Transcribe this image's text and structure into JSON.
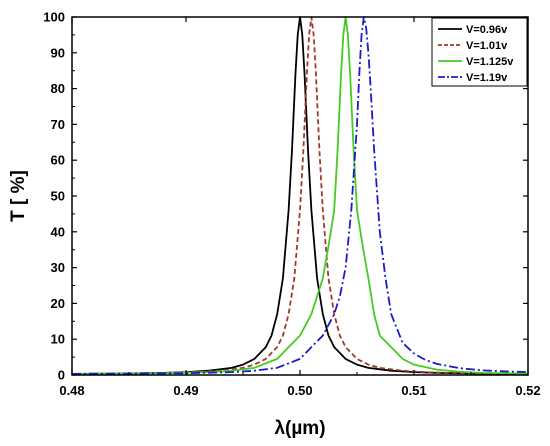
{
  "chart_data": {
    "type": "line",
    "xlabel": "λ(µm)",
    "ylabel": "T [ %]",
    "xlim": [
      0.48,
      0.52
    ],
    "ylim": [
      0,
      100
    ],
    "xticks": [
      "0.48",
      "0.49",
      "0.50",
      "0.51",
      "0.52"
    ],
    "yticks": [
      "0",
      "10",
      "20",
      "30",
      "40",
      "50",
      "60",
      "70",
      "80",
      "90",
      "100"
    ],
    "legend_position": "top-right",
    "grid": false,
    "series": [
      {
        "name": "V=0.96v",
        "color": "#000000",
        "dash": "solid",
        "x": [
          0.48,
          0.484,
          0.488,
          0.49,
          0.492,
          0.494,
          0.495,
          0.496,
          0.497,
          0.4975,
          0.498,
          0.4985,
          0.499,
          0.4993,
          0.4996,
          0.4998,
          0.5,
          0.5002,
          0.5004,
          0.5007,
          0.501,
          0.5015,
          0.502,
          0.5025,
          0.503,
          0.504,
          0.505,
          0.506,
          0.508,
          0.51,
          0.512,
          0.516,
          0.52
        ],
        "y": [
          0.3,
          0.4,
          0.6,
          0.8,
          1.2,
          2.0,
          2.9,
          4.5,
          7.8,
          11,
          17,
          27,
          46,
          63,
          84,
          95,
          100,
          95,
          84,
          63,
          46,
          27,
          17,
          11,
          7.8,
          4.5,
          2.9,
          2.0,
          1.2,
          0.8,
          0.6,
          0.4,
          0.3
        ]
      },
      {
        "name": "V=1.01v",
        "color": "#a0392a",
        "dash": "dash",
        "x": [
          0.48,
          0.485,
          0.489,
          0.491,
          0.493,
          0.495,
          0.496,
          0.497,
          0.498,
          0.4985,
          0.499,
          0.4995,
          0.5,
          0.5003,
          0.5006,
          0.5008,
          0.501,
          0.5012,
          0.5014,
          0.5017,
          0.502,
          0.5025,
          0.503,
          0.5035,
          0.504,
          0.505,
          0.506,
          0.507,
          0.509,
          0.511,
          0.513,
          0.517,
          0.52
        ],
        "y": [
          0.3,
          0.4,
          0.6,
          0.8,
          1.2,
          2.0,
          2.9,
          4.5,
          7.8,
          11,
          17,
          27,
          46,
          63,
          84,
          95,
          100,
          95,
          84,
          63,
          46,
          27,
          17,
          11,
          7.8,
          4.5,
          2.9,
          2.0,
          1.2,
          0.8,
          0.6,
          0.4,
          0.3
        ]
      },
      {
        "name": "V=1.125v",
        "color": "#44cc22",
        "dash": "solid",
        "x": [
          0.48,
          0.488,
          0.492,
          0.494,
          0.496,
          0.498,
          0.499,
          0.5,
          0.501,
          0.5015,
          0.502,
          0.5025,
          0.503,
          0.5033,
          0.5036,
          0.5038,
          0.504,
          0.5042,
          0.5044,
          0.5047,
          0.505,
          0.5055,
          0.506,
          0.5065,
          0.507,
          0.508,
          0.509,
          0.51,
          0.512,
          0.514,
          0.516,
          0.52
        ],
        "y": [
          0.3,
          0.5,
          0.8,
          1.2,
          2.0,
          4.5,
          7.8,
          11,
          17,
          22,
          27,
          36,
          46,
          63,
          84,
          95,
          100,
          95,
          84,
          63,
          46,
          36,
          27,
          17,
          11,
          7.8,
          4.5,
          2.9,
          1.5,
          0.9,
          0.6,
          0.4
        ]
      },
      {
        "name": "V=1.19v",
        "color": "#1a1acc",
        "dash": "dashdot",
        "x": [
          0.48,
          0.49,
          0.494,
          0.496,
          0.498,
          0.5,
          0.501,
          0.502,
          0.503,
          0.5035,
          0.504,
          0.5045,
          0.505,
          0.5052,
          0.5054,
          0.5056,
          0.5058,
          0.506,
          0.5062,
          0.5065,
          0.507,
          0.5075,
          0.508,
          0.509,
          0.51,
          0.511,
          0.512,
          0.514,
          0.516,
          0.518,
          0.52
        ],
        "y": [
          0.3,
          0.5,
          0.8,
          1.2,
          2.0,
          4.5,
          7.8,
          11,
          17,
          22,
          30,
          46,
          70,
          84,
          95,
          100,
          97,
          90,
          80,
          63,
          40,
          27,
          17,
          9,
          6,
          4.2,
          3.1,
          1.9,
          1.3,
          1.0,
          0.8
        ]
      }
    ]
  }
}
